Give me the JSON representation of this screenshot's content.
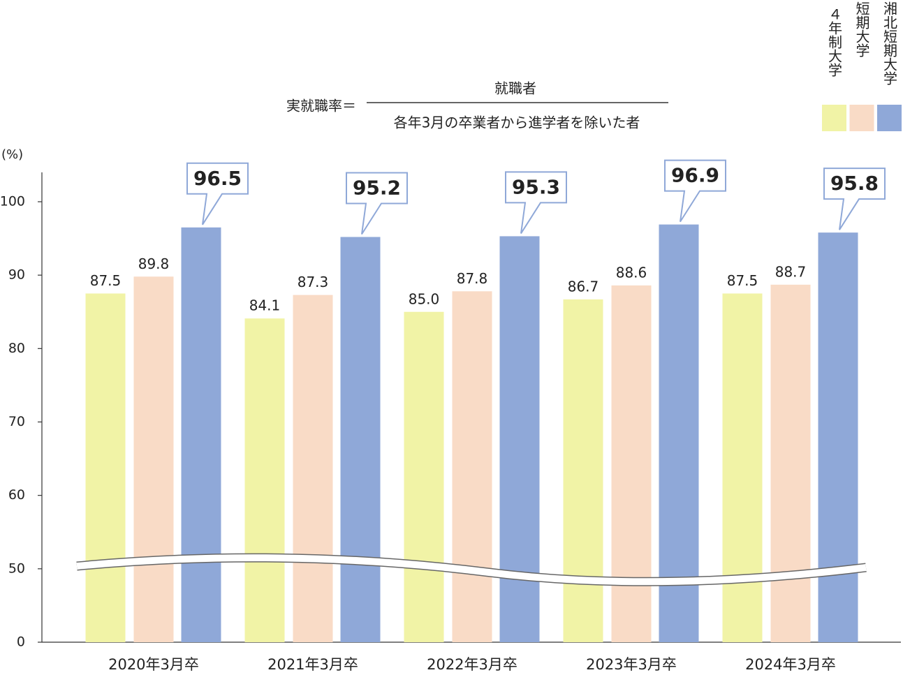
{
  "chart_data": {
    "type": "bar",
    "formula": {
      "label": "実就職率＝",
      "numerator": "就職者",
      "denominator": "各年3月の卒業者から進学者を除いた者"
    },
    "y_unit": "(%)",
    "categories": [
      "2020年3月卒",
      "2021年3月卒",
      "2022年3月卒",
      "2023年3月卒",
      "2024年3月卒"
    ],
    "series": [
      {
        "name": "４年制大学",
        "color": "#f1f3a6",
        "values": [
          87.5,
          84.1,
          85.0,
          86.7,
          87.5
        ],
        "value_labels": [
          "87.5",
          "84.1",
          "85.0",
          "86.7",
          "87.5"
        ]
      },
      {
        "name": "短期大学",
        "color": "#f9dbc6",
        "values": [
          89.8,
          87.3,
          87.8,
          88.6,
          88.7
        ],
        "value_labels": [
          "89.8",
          "87.3",
          "87.8",
          "88.6",
          "88.7"
        ]
      },
      {
        "name": "湘北短期大学",
        "color": "#8fa8d8",
        "values": [
          96.5,
          95.2,
          95.3,
          96.9,
          95.8
        ],
        "value_labels": [
          "96.5",
          "95.2",
          "95.3",
          "96.9",
          "95.8"
        ],
        "callout": true
      }
    ],
    "ylim": [
      0,
      104
    ],
    "yticks": [
      0,
      50,
      60,
      70,
      80,
      90,
      100
    ],
    "axis_break": true
  }
}
